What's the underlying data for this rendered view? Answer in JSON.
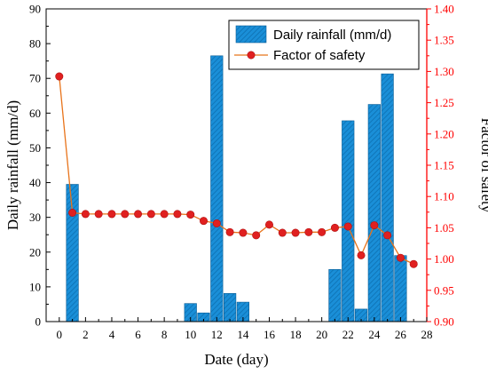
{
  "chart_data": {
    "type": "bar+line",
    "xlabel": "Date (day)",
    "y_left_label": "Daily rainfall (mm/d)",
    "y_right_label": "Factor of safety",
    "xlim": [
      -1,
      28
    ],
    "x_ticks": [
      0,
      2,
      4,
      6,
      8,
      10,
      12,
      14,
      16,
      18,
      20,
      22,
      24,
      26,
      28
    ],
    "y_left_lim": [
      0,
      90
    ],
    "y_left_ticks": [
      0,
      10,
      20,
      30,
      40,
      50,
      60,
      70,
      80,
      90
    ],
    "y_right_lim": [
      0.9,
      1.4
    ],
    "y_right_ticks": [
      "0.90",
      "0.95",
      "1.00",
      "1.05",
      "1.10",
      "1.15",
      "1.20",
      "1.25",
      "1.30",
      "1.35",
      "1.40"
    ],
    "grid": false,
    "legend_position": "top-right",
    "series": [
      {
        "name": "Daily rainfall (mm/d)",
        "type": "bar",
        "axis": "left",
        "color": "#1a8fd8",
        "x": [
          1,
          10,
          11,
          12,
          13,
          14,
          21,
          22,
          23,
          24,
          25,
          26
        ],
        "values": [
          39.5,
          5.2,
          2.5,
          76.5,
          8.1,
          5.6,
          15.0,
          57.8,
          3.6,
          62.5,
          71.3,
          19.0
        ]
      },
      {
        "name": "Factor of safety",
        "type": "line",
        "axis": "right",
        "color": "#e8731a",
        "marker_color": "#e02020",
        "x": [
          0,
          1,
          2,
          3,
          4,
          5,
          6,
          7,
          8,
          9,
          10,
          11,
          12,
          13,
          14,
          15,
          16,
          17,
          18,
          19,
          20,
          21,
          22,
          23,
          24,
          25,
          26,
          27
        ],
        "values": [
          1.292,
          1.074,
          1.072,
          1.072,
          1.072,
          1.072,
          1.072,
          1.072,
          1.072,
          1.072,
          1.071,
          1.061,
          1.057,
          1.043,
          1.042,
          1.038,
          1.055,
          1.042,
          1.042,
          1.043,
          1.043,
          1.05,
          1.052,
          1.006,
          1.054,
          1.038,
          1.002,
          0.992
        ]
      }
    ]
  }
}
